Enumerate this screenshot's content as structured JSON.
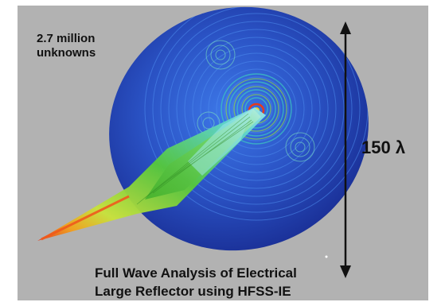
{
  "annotation": {
    "unknowns_line1": "2.7 million",
    "unknowns_line2": "unknowns"
  },
  "dimension": {
    "label": "150 λ"
  },
  "caption": {
    "line1": "Full Wave Analysis of Electrical",
    "line2": "Large Reflector using HFSS-IE"
  },
  "colors": {
    "background": "#b2b2b2",
    "dish_dark": "#1f3fa8",
    "dish_light": "#3a6ee0",
    "beam_green": "#56c93a",
    "beam_cyan": "#5fd6c8",
    "hot_red": "#e63a1c",
    "arrow": "#111111"
  },
  "icons": {
    "dimension_arrow": "double-headed-vertical-arrow-icon"
  }
}
